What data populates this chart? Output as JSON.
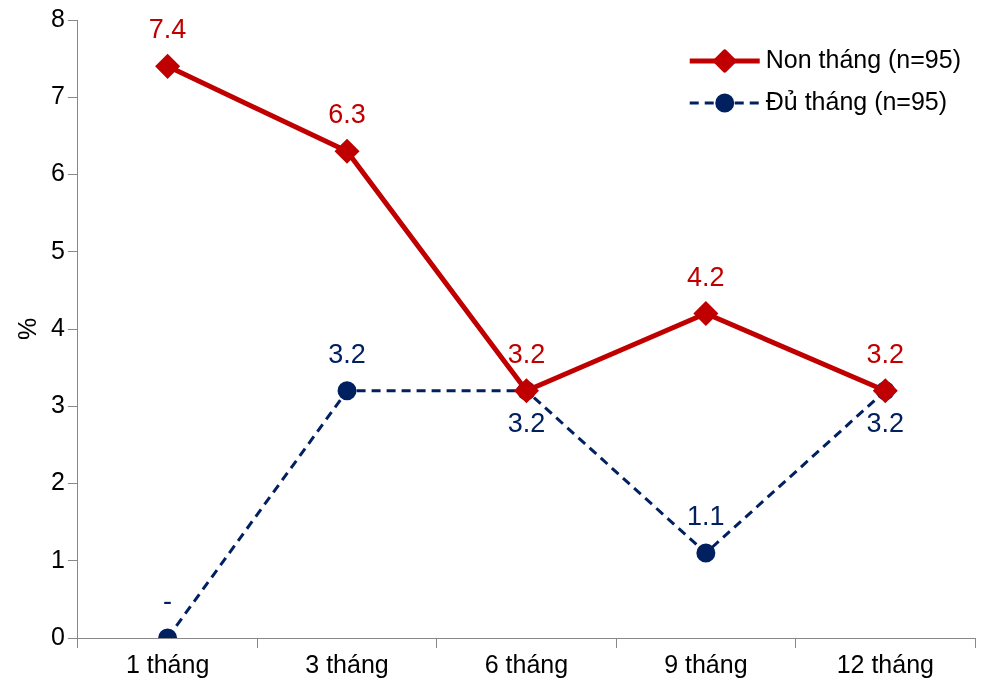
{
  "chart_data": {
    "type": "line",
    "ylabel": "%",
    "categories": [
      "1 tháng",
      "3 tháng",
      "6 tháng",
      "9 tháng",
      "12 tháng"
    ],
    "series": [
      {
        "name": "Non tháng (n=95)",
        "color": "#c00000",
        "marker": "diamond",
        "line_style": "solid",
        "values": [
          7.4,
          6.3,
          3.2,
          4.2,
          3.2
        ],
        "value_labels": [
          "7.4",
          "6.3",
          "3.2",
          "4.2",
          "3.2"
        ]
      },
      {
        "name": "Đủ tháng (n=95)",
        "color": "#002060",
        "marker": "circle",
        "line_style": "dashed",
        "values": [
          0,
          3.2,
          3.2,
          1.1,
          3.2
        ],
        "value_labels": [
          "-",
          "3.2",
          "3.2",
          "1.1",
          "3.2"
        ]
      }
    ],
    "ylim": [
      0,
      8
    ],
    "yticks": [
      0,
      1,
      2,
      3,
      4,
      5,
      6,
      7,
      8
    ],
    "grid": false,
    "legend": "top right"
  }
}
